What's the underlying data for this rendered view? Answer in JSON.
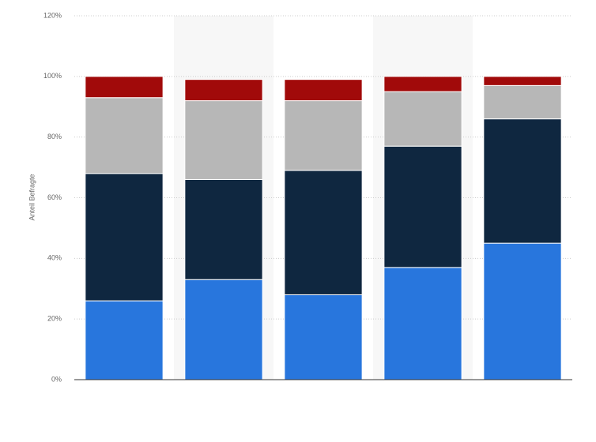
{
  "chart_data": {
    "type": "stacked_bar",
    "ylabel": "Anteil Befragte",
    "categories": [
      null,
      null,
      null,
      null,
      null
    ],
    "series": [
      {
        "color": "#2876dd",
        "values": [
          26,
          33,
          28,
          37,
          45
        ]
      },
      {
        "color": "#0f2740",
        "values": [
          42,
          33,
          41,
          40,
          41
        ]
      },
      {
        "color": "#b7b7b7",
        "values": [
          25,
          26,
          23,
          18,
          11
        ]
      },
      {
        "color": "#a10a0a",
        "values": [
          7,
          7,
          7,
          5,
          3
        ]
      }
    ],
    "ylim": [
      0,
      120
    ],
    "yticks": [
      {
        "value": 0,
        "label": "0%"
      },
      {
        "value": 20,
        "label": "20%"
      },
      {
        "value": 40,
        "label": "40%"
      },
      {
        "value": 60,
        "label": "60%"
      },
      {
        "value": 80,
        "label": "80%"
      },
      {
        "value": 100,
        "label": "100%"
      },
      {
        "value": 120,
        "label": "120%"
      }
    ],
    "grid": true
  }
}
